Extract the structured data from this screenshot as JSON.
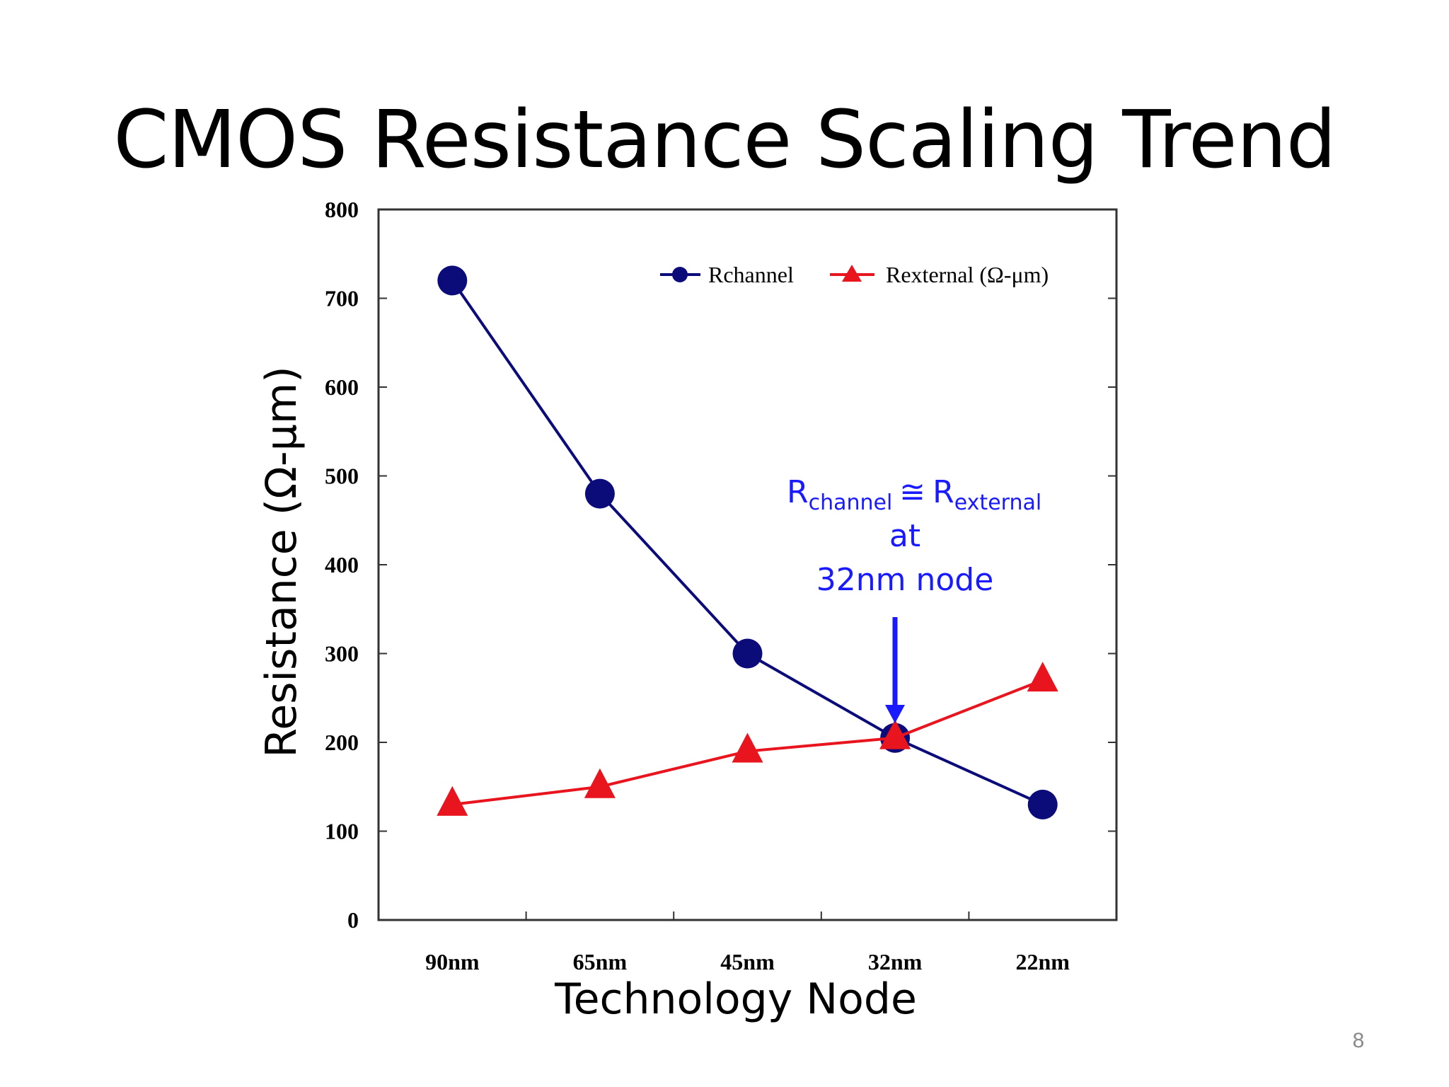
{
  "slide": {
    "title": "CMOS Resistance Scaling Trend",
    "page_number": "8"
  },
  "chart_data": {
    "type": "line",
    "title": "",
    "xlabel": "Technology Node",
    "ylabel": "Resistance (Ω-μm)",
    "categories": [
      "90nm",
      "65nm",
      "45nm",
      "32nm",
      "22nm"
    ],
    "ylim": [
      0,
      800
    ],
    "yticks": [
      0,
      100,
      200,
      300,
      400,
      500,
      600,
      700,
      800
    ],
    "grid": false,
    "legend_position": "top-right",
    "series": [
      {
        "name": "Rchannel",
        "values": [
          720,
          480,
          300,
          205,
          130
        ],
        "color": "#0b0b7a",
        "marker": "circle"
      },
      {
        "name": "Rexternal (Ω-μm)",
        "values": [
          130,
          150,
          190,
          205,
          270
        ],
        "color": "#e8141e",
        "marker": "triangle"
      }
    ],
    "annotation": {
      "line1_main_a": "R",
      "line1_sub_a": "channel",
      "line1_sym": "≅",
      "line1_main_b": "R",
      "line1_sub_b": "external",
      "line2": "at",
      "line3": "32nm node",
      "arrow_target_category": "32nm",
      "color": "#1a1aff"
    }
  }
}
